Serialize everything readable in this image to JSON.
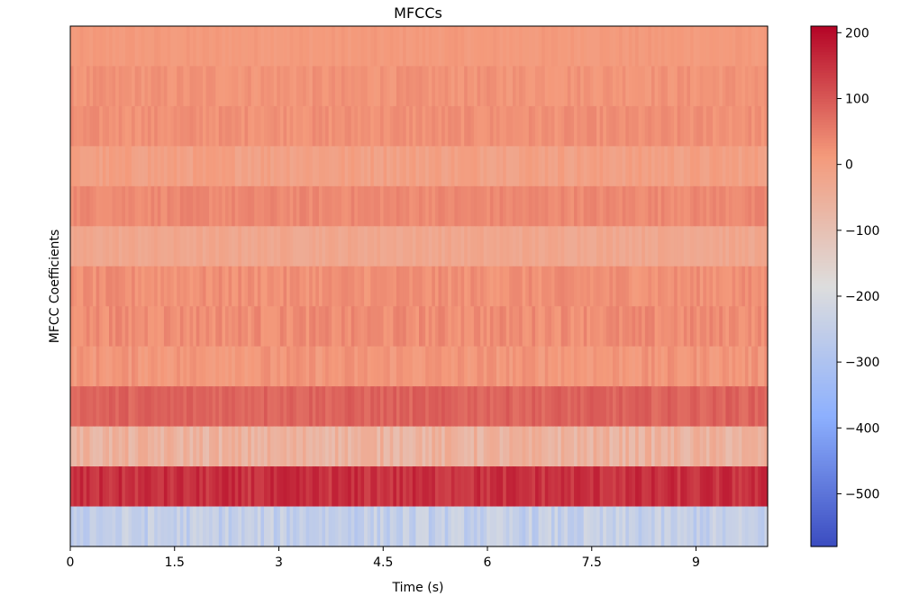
{
  "chart_data": {
    "type": "heatmap",
    "title": "MFCCs",
    "xlabel": "Time (s)",
    "ylabel": "MFCC Coefficients",
    "x_ticks": [
      "0",
      "1.5",
      "3",
      "4.5",
      "6",
      "7.5",
      "9"
    ],
    "x_tick_values": [
      0,
      1.5,
      3,
      4.5,
      6,
      7.5,
      9
    ],
    "xlim": [
      0,
      10.03
    ],
    "num_coefficients": 13,
    "num_frames": 216,
    "rows_top_to_bottom": [
      {
        "base": 10,
        "variation": 9
      },
      {
        "base": 20,
        "variation": 14
      },
      {
        "base": 25,
        "variation": 14
      },
      {
        "base": -5,
        "variation": 18
      },
      {
        "base": 35,
        "variation": 14
      },
      {
        "base": -25,
        "variation": 14
      },
      {
        "base": 25,
        "variation": 18
      },
      {
        "base": 30,
        "variation": 20
      },
      {
        "base": 15,
        "variation": 20
      },
      {
        "base": 85,
        "variation": 18
      },
      {
        "base": -60,
        "variation": 35
      },
      {
        "base": 150,
        "variation": 28
      },
      {
        "base": -250,
        "variation": 40
      }
    ],
    "colorbar": {
      "colormap": "coolwarm",
      "vmin": -580,
      "vmax": 210,
      "ticks": [
        200,
        100,
        0,
        -100,
        -200,
        -300,
        -400,
        -500
      ],
      "tick_labels": [
        "200",
        "100",
        "0",
        "−100",
        "−200",
        "−300",
        "−400",
        "−500"
      ]
    }
  }
}
